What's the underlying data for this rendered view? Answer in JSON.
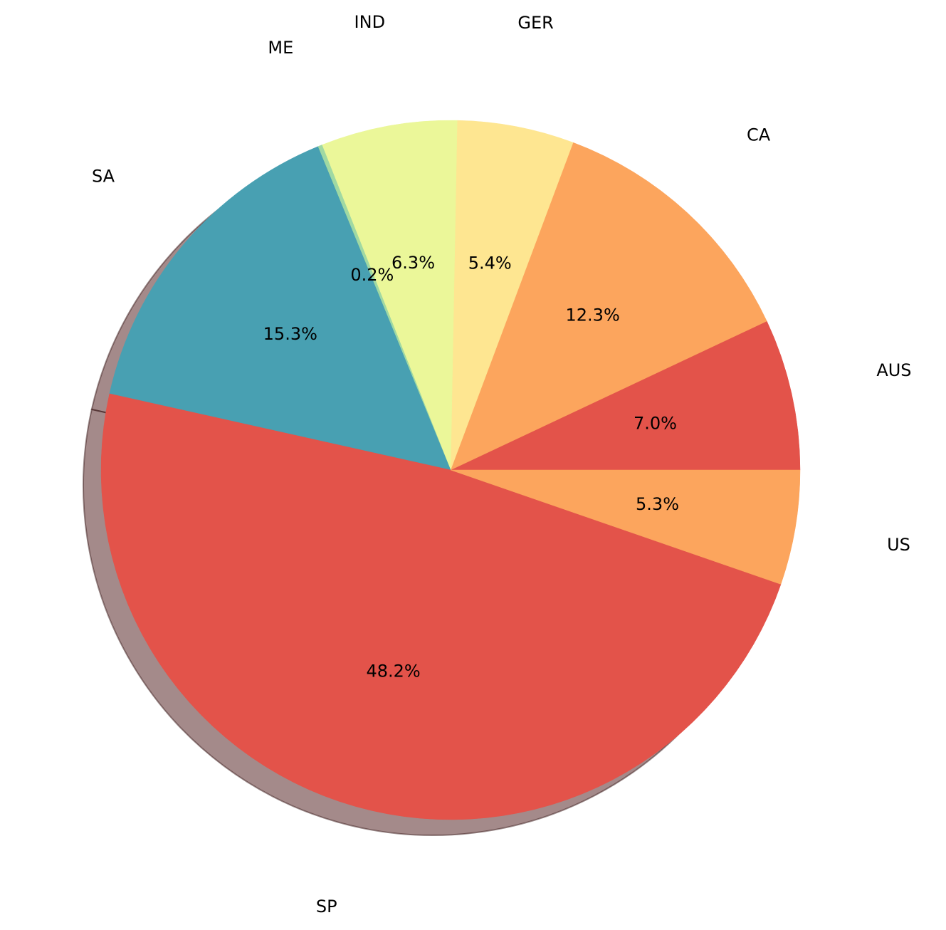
{
  "chart_data": {
    "type": "pie",
    "categories": [
      "AUS",
      "CA",
      "GER",
      "IND",
      "ME",
      "SA",
      "SP",
      "US"
    ],
    "values": [
      7.0,
      12.3,
      5.4,
      6.3,
      0.2,
      15.3,
      48.2,
      5.3
    ],
    "value_labels": [
      "7.0%",
      "12.3%",
      "5.4%",
      "6.3%",
      "0.2%",
      "15.3%",
      "48.2%",
      "5.3%"
    ],
    "colors": [
      "#e3534a",
      "#fca55d",
      "#fee691",
      "#ebf799",
      "#a0d9a3",
      "#48a0b2",
      "#e3534a",
      "#fca55d"
    ],
    "shadow": true
  }
}
